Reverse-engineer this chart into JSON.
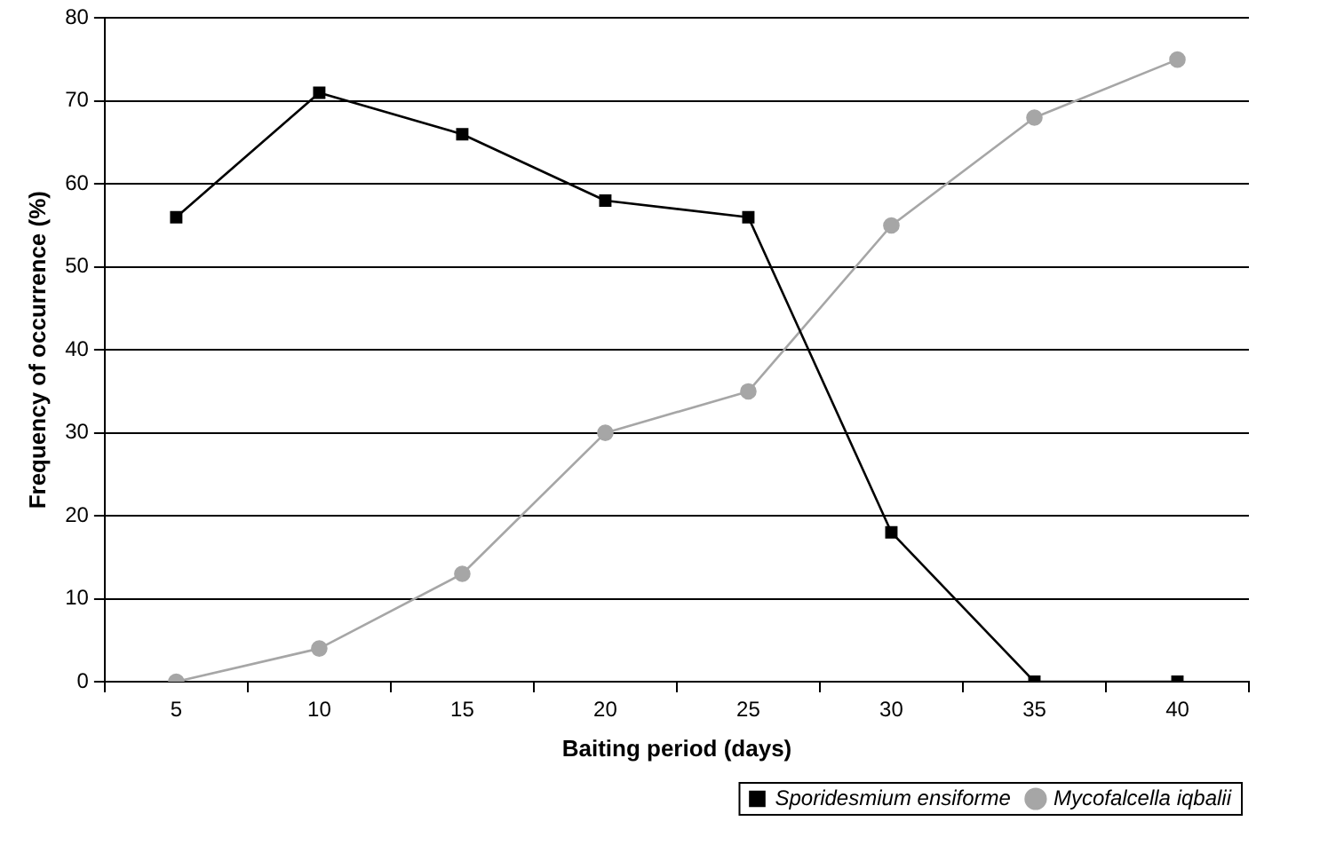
{
  "chart_data": {
    "type": "line",
    "xlabel": "Baiting period (days)",
    "ylabel": "Frequency of occurrence (%)",
    "categories": [
      "5",
      "10",
      "15",
      "20",
      "25",
      "30",
      "35",
      "40"
    ],
    "series": [
      {
        "name": "Sporidesmium ensiforme",
        "color": "#000000",
        "marker": "square",
        "values": [
          56,
          71,
          66,
          58,
          56,
          18,
          0,
          0
        ]
      },
      {
        "name": "Mycofalcella iqbalii",
        "color": "#a6a6a6",
        "marker": "circle",
        "values": [
          0,
          4,
          13,
          30,
          35,
          55,
          68,
          75
        ]
      }
    ],
    "ylim": [
      0,
      80
    ],
    "yticks": [
      0,
      10,
      20,
      30,
      40,
      50,
      60,
      70,
      80
    ],
    "grid": "y",
    "legend": "bottom",
    "line_style": "solid"
  }
}
